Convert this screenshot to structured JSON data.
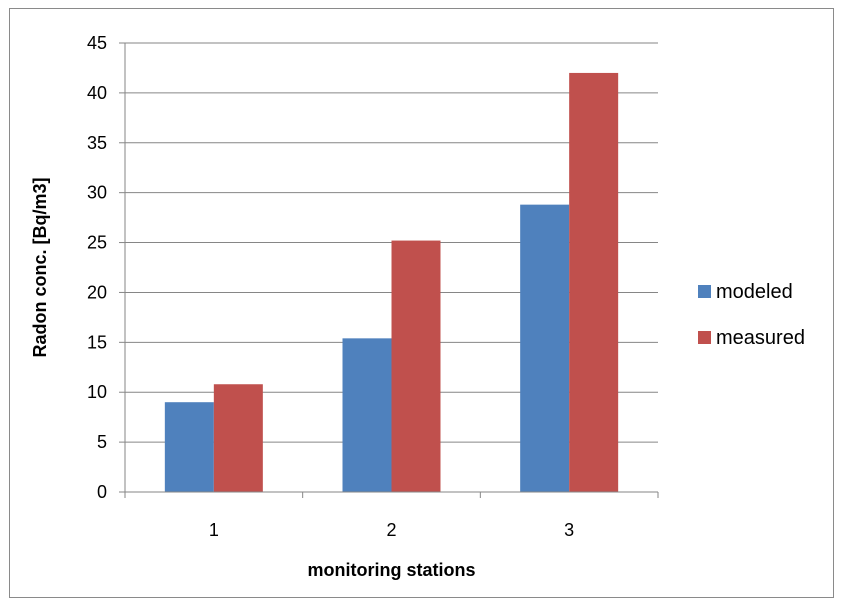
{
  "chart_data": {
    "type": "bar",
    "categories": [
      "1",
      "2",
      "3"
    ],
    "series": [
      {
        "name": "modeled",
        "values": [
          9.0,
          15.4,
          28.8
        ],
        "color": "#4f81bd"
      },
      {
        "name": "measured",
        "values": [
          10.8,
          25.2,
          42.0
        ],
        "color": "#c0504d"
      }
    ],
    "title": "",
    "xlabel": "monitoring stations",
    "ylabel": "Radon conc. [Bq/m3]",
    "ylim": [
      0,
      45
    ],
    "ytick_step": 5,
    "yticks": [
      "0",
      "5",
      "10",
      "15",
      "20",
      "25",
      "30",
      "35",
      "40",
      "45"
    ],
    "grid": true,
    "legend_position": "right",
    "gridline_color": "#868686",
    "axis_color": "#868686"
  }
}
